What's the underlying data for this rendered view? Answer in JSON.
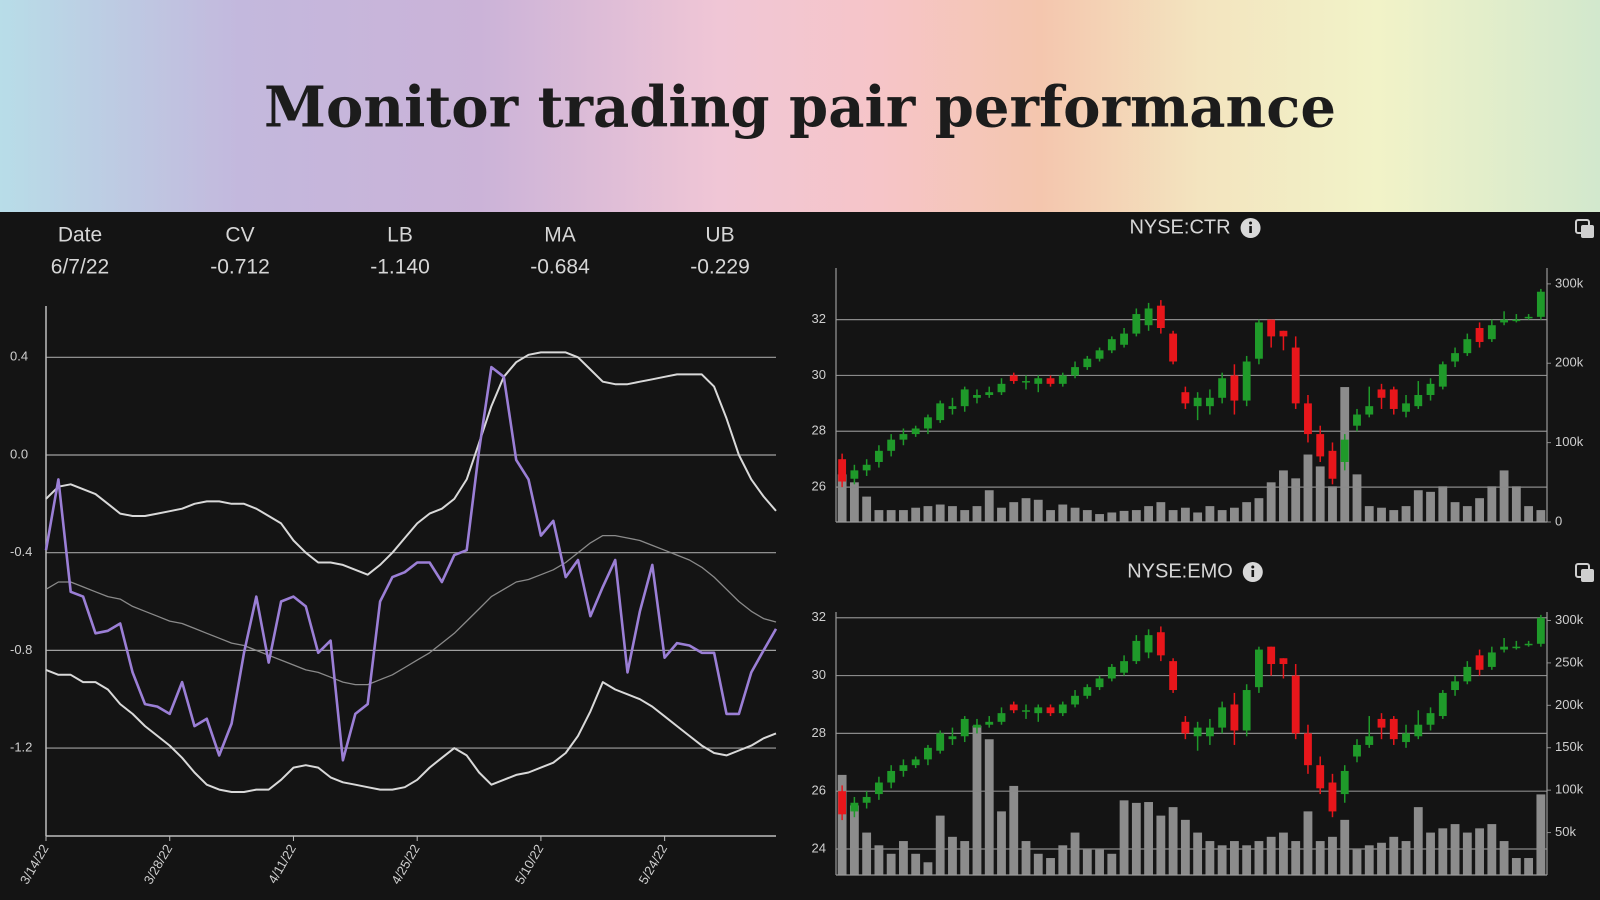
{
  "header": {
    "title": "Monitor trading pair performance"
  },
  "chart_data": [
    {
      "type": "line",
      "readout": {
        "label": "Date",
        "date": "6/7/22"
      },
      "categories": [
        "3/14/22",
        null,
        null,
        null,
        null,
        null,
        null,
        null,
        null,
        null,
        "3/28/22",
        null,
        null,
        null,
        null,
        null,
        null,
        null,
        null,
        null,
        "4/11/22",
        null,
        null,
        null,
        null,
        null,
        null,
        null,
        null,
        null,
        "4/25/22",
        null,
        null,
        null,
        null,
        null,
        null,
        null,
        null,
        null,
        "5/10/22",
        null,
        null,
        null,
        null,
        null,
        null,
        null,
        null,
        null,
        "5/24/22",
        null,
        null,
        null,
        null,
        null,
        null,
        null,
        null,
        null
      ],
      "ylim": [
        -1.56,
        0.61
      ],
      "yticks": [
        0.4,
        {
          "value": 0,
          "label": "0.0"
        },
        -0.4,
        -0.8,
        -1.2
      ],
      "grid": true,
      "series": [
        {
          "name": "CV",
          "readout": "-0.712",
          "color": "#9b7fd6",
          "width": 2.6,
          "values": [
            -0.39,
            -0.1,
            -0.56,
            -0.58,
            -0.73,
            -0.72,
            -0.69,
            -0.89,
            -1.02,
            -1.03,
            -1.06,
            -0.93,
            -1.11,
            -1.08,
            -1.23,
            -1.1,
            -0.81,
            -0.58,
            -0.85,
            -0.6,
            -0.58,
            -0.62,
            -0.81,
            -0.76,
            -1.25,
            -1.06,
            -1.02,
            -0.6,
            -0.5,
            -0.48,
            -0.44,
            -0.44,
            -0.52,
            -0.41,
            -0.39,
            0.02,
            0.36,
            0.32,
            -0.02,
            -0.1,
            -0.33,
            -0.27,
            -0.5,
            -0.43,
            -0.66,
            -0.54,
            -0.43,
            -0.89,
            -0.64,
            -0.45,
            -0.83,
            -0.77,
            -0.78,
            -0.81,
            -0.81,
            -1.06,
            -1.06,
            -0.89,
            -0.8,
            -0.712
          ]
        },
        {
          "name": "LB",
          "readout": "-1.140",
          "color": "#d9d9d9",
          "width": 2,
          "values": [
            -0.88,
            -0.9,
            -0.9,
            -0.93,
            -0.93,
            -0.96,
            -1.02,
            -1.06,
            -1.11,
            -1.15,
            -1.19,
            -1.24,
            -1.3,
            -1.35,
            -1.37,
            -1.38,
            -1.38,
            -1.37,
            -1.37,
            -1.33,
            -1.28,
            -1.27,
            -1.28,
            -1.32,
            -1.34,
            -1.35,
            -1.36,
            -1.37,
            -1.37,
            -1.36,
            -1.33,
            -1.28,
            -1.24,
            -1.2,
            -1.23,
            -1.3,
            -1.35,
            -1.33,
            -1.31,
            -1.3,
            -1.28,
            -1.26,
            -1.22,
            -1.15,
            -1.05,
            -0.93,
            -0.96,
            -0.98,
            -1.0,
            -1.03,
            -1.07,
            -1.11,
            -1.15,
            -1.19,
            -1.22,
            -1.23,
            -1.21,
            -1.19,
            -1.16,
            -1.14
          ]
        },
        {
          "name": "MA",
          "readout": "-0.684",
          "color": "#8a8a8a",
          "width": 1.3,
          "values": [
            -0.55,
            -0.52,
            -0.52,
            -0.54,
            -0.56,
            -0.58,
            -0.59,
            -0.62,
            -0.64,
            -0.66,
            -0.68,
            -0.69,
            -0.71,
            -0.73,
            -0.75,
            -0.77,
            -0.78,
            -0.8,
            -0.82,
            -0.84,
            -0.86,
            -0.88,
            -0.89,
            -0.91,
            -0.93,
            -0.94,
            -0.94,
            -0.92,
            -0.9,
            -0.87,
            -0.84,
            -0.81,
            -0.77,
            -0.73,
            -0.68,
            -0.63,
            -0.58,
            -0.55,
            -0.52,
            -0.51,
            -0.49,
            -0.47,
            -0.44,
            -0.4,
            -0.36,
            -0.33,
            -0.33,
            -0.34,
            -0.35,
            -0.37,
            -0.39,
            -0.41,
            -0.43,
            -0.46,
            -0.5,
            -0.55,
            -0.6,
            -0.64,
            -0.67,
            -0.684
          ]
        },
        {
          "name": "UB",
          "readout": "-0.229",
          "color": "#d9d9d9",
          "width": 2,
          "values": [
            -0.18,
            -0.13,
            -0.12,
            -0.14,
            -0.16,
            -0.2,
            -0.24,
            -0.25,
            -0.25,
            -0.24,
            -0.23,
            -0.22,
            -0.2,
            -0.19,
            -0.19,
            -0.2,
            -0.2,
            -0.22,
            -0.25,
            -0.28,
            -0.35,
            -0.4,
            -0.44,
            -0.44,
            -0.45,
            -0.47,
            -0.49,
            -0.45,
            -0.4,
            -0.34,
            -0.28,
            -0.24,
            -0.22,
            -0.18,
            -0.1,
            0.05,
            0.2,
            0.32,
            0.38,
            0.41,
            0.42,
            0.42,
            0.42,
            0.4,
            0.35,
            0.3,
            0.29,
            0.29,
            0.3,
            0.31,
            0.32,
            0.33,
            0.33,
            0.33,
            0.28,
            0.15,
            0.0,
            -0.1,
            -0.17,
            -0.229
          ]
        }
      ]
    },
    {
      "type": "candlestick",
      "title": "NYSE:CTR",
      "up_color": "#1f9a2a",
      "down_color": "#e8161b",
      "volume_color": "#8c8c8c",
      "grid": true,
      "ylim": [
        24.75,
        33.85
      ],
      "yticks": [
        26,
        28,
        30,
        32
      ],
      "y2lim": [
        0,
        320000
      ],
      "y2ticks": [
        0,
        {
          "value": 100000,
          "label": "100k"
        },
        {
          "value": 200000,
          "label": "200k"
        },
        {
          "value": 300000,
          "label": "300k"
        }
      ],
      "open": [
        27.0,
        26.3,
        26.6,
        26.9,
        27.3,
        27.7,
        27.9,
        28.1,
        28.4,
        28.8,
        28.9,
        29.2,
        29.3,
        29.4,
        30.0,
        29.8,
        29.7,
        29.9,
        29.7,
        30.0,
        30.3,
        30.6,
        30.9,
        31.1,
        31.5,
        31.8,
        32.5,
        31.5,
        29.4,
        28.9,
        28.9,
        29.2,
        30.0,
        29.1,
        30.6,
        32.0,
        31.6,
        31.0,
        29.0,
        27.9,
        27.3,
        26.9,
        28.2,
        28.6,
        29.5,
        29.5,
        28.7,
        28.9,
        29.3,
        29.6,
        30.5,
        30.8,
        31.7,
        31.3,
        31.9,
        32.0,
        32.1,
        32.1
      ],
      "high": [
        27.2,
        26.8,
        27.0,
        27.5,
        27.9,
        28.1,
        28.2,
        28.6,
        29.1,
        29.2,
        29.6,
        29.5,
        29.6,
        29.9,
        30.1,
        30.0,
        30.0,
        30.0,
        30.1,
        30.5,
        30.7,
        31.0,
        31.4,
        31.7,
        32.4,
        32.6,
        32.7,
        31.6,
        29.6,
        29.4,
        29.5,
        30.1,
        30.4,
        30.7,
        32.0,
        32.0,
        31.6,
        31.4,
        29.3,
        28.2,
        27.6,
        27.9,
        28.8,
        29.6,
        29.7,
        29.6,
        29.3,
        29.8,
        29.9,
        30.5,
        31.0,
        31.5,
        31.9,
        32.0,
        32.3,
        32.2,
        32.2,
        33.1
      ],
      "low": [
        26.0,
        26.1,
        26.4,
        26.7,
        27.1,
        27.5,
        27.8,
        27.9,
        28.3,
        28.6,
        28.7,
        29.0,
        29.2,
        29.3,
        29.7,
        29.5,
        29.4,
        29.6,
        29.6,
        29.9,
        30.2,
        30.5,
        30.8,
        31.0,
        31.4,
        31.6,
        31.5,
        30.4,
        28.8,
        28.4,
        28.6,
        29.0,
        28.6,
        28.9,
        30.4,
        31.0,
        30.9,
        28.8,
        27.6,
        26.9,
        26.1,
        26.6,
        28.0,
        28.5,
        28.8,
        28.6,
        28.5,
        28.8,
        29.1,
        29.5,
        30.3,
        30.7,
        31.0,
        31.2,
        31.8,
        31.9,
        32.0,
        32.0
      ],
      "close": [
        26.2,
        26.6,
        26.8,
        27.3,
        27.7,
        27.9,
        28.1,
        28.5,
        29.0,
        28.9,
        29.5,
        29.3,
        29.4,
        29.7,
        29.8,
        29.8,
        29.9,
        29.7,
        30.0,
        30.3,
        30.6,
        30.9,
        31.3,
        31.5,
        32.2,
        32.4,
        31.7,
        30.5,
        29.0,
        29.2,
        29.2,
        29.9,
        29.1,
        30.5,
        31.9,
        31.4,
        31.4,
        29.0,
        27.9,
        27.1,
        26.3,
        27.7,
        28.6,
        28.9,
        29.2,
        28.8,
        29.0,
        29.3,
        29.7,
        30.4,
        30.8,
        31.3,
        31.2,
        31.8,
        32.0,
        32.0,
        32.1,
        33.0
      ],
      "volume": [
        60000,
        50000,
        32000,
        15000,
        15000,
        15000,
        18000,
        20000,
        22000,
        20000,
        15000,
        20000,
        40000,
        18000,
        25000,
        30000,
        28000,
        15000,
        22000,
        18000,
        15000,
        10000,
        12000,
        14000,
        15000,
        20000,
        25000,
        15000,
        18000,
        12000,
        20000,
        15000,
        18000,
        25000,
        30000,
        50000,
        65000,
        55000,
        85000,
        70000,
        45000,
        170000,
        60000,
        20000,
        18000,
        15000,
        20000,
        40000,
        38000,
        45000,
        25000,
        20000,
        30000,
        45000,
        65000,
        45000,
        20000,
        15000
      ]
    },
    {
      "type": "candlestick",
      "title": "NYSE:EMO",
      "up_color": "#1f9a2a",
      "down_color": "#e8161b",
      "volume_color": "#8c8c8c",
      "grid": true,
      "ylim": [
        23.1,
        32.2
      ],
      "yticks": [
        24,
        26,
        28,
        30,
        32
      ],
      "y2lim": [
        0,
        310000
      ],
      "y2ticks": [
        {
          "value": 50000,
          "label": "50k"
        },
        {
          "value": 100000,
          "label": "100k"
        },
        {
          "value": 150000,
          "label": "150k"
        },
        {
          "value": 200000,
          "label": "200k"
        },
        {
          "value": 250000,
          "label": "250k"
        },
        {
          "value": 300000,
          "label": "300k"
        }
      ],
      "open": [
        26.0,
        25.3,
        25.6,
        25.9,
        26.3,
        26.7,
        26.9,
        27.1,
        27.4,
        27.8,
        27.9,
        28.2,
        28.3,
        28.4,
        29.0,
        28.8,
        28.7,
        28.9,
        28.7,
        29.0,
        29.3,
        29.6,
        29.9,
        30.1,
        30.5,
        30.8,
        31.5,
        30.5,
        28.4,
        27.9,
        27.9,
        28.2,
        29.0,
        28.1,
        29.6,
        31.0,
        30.6,
        30.0,
        28.0,
        26.9,
        26.3,
        25.9,
        27.2,
        27.6,
        28.5,
        28.5,
        27.7,
        27.9,
        28.3,
        28.6,
        29.5,
        29.8,
        30.7,
        30.3,
        30.9,
        31.0,
        31.1,
        31.1
      ],
      "high": [
        26.2,
        25.8,
        26.0,
        26.5,
        26.9,
        27.1,
        27.2,
        27.6,
        28.1,
        28.2,
        28.6,
        28.5,
        28.6,
        28.9,
        29.1,
        29.0,
        29.0,
        29.0,
        29.1,
        29.5,
        29.7,
        30.0,
        30.4,
        30.7,
        31.4,
        31.6,
        31.7,
        30.6,
        28.6,
        28.4,
        28.5,
        29.1,
        29.4,
        29.7,
        31.0,
        31.0,
        30.6,
        30.4,
        28.3,
        27.2,
        26.6,
        26.9,
        27.8,
        28.6,
        28.7,
        28.6,
        28.3,
        28.8,
        28.9,
        29.5,
        30.0,
        30.5,
        30.9,
        31.0,
        31.3,
        31.2,
        31.2,
        32.1
      ],
      "low": [
        25.0,
        25.1,
        25.4,
        25.7,
        26.1,
        26.5,
        26.8,
        26.9,
        27.3,
        27.6,
        27.7,
        28.0,
        28.2,
        28.3,
        28.7,
        28.5,
        28.4,
        28.6,
        28.6,
        28.9,
        29.2,
        29.5,
        29.8,
        30.0,
        30.4,
        30.6,
        30.5,
        29.4,
        27.8,
        27.4,
        27.6,
        28.0,
        27.6,
        27.9,
        29.4,
        30.0,
        29.9,
        27.8,
        26.6,
        25.9,
        25.1,
        25.6,
        27.0,
        27.5,
        27.8,
        27.6,
        27.5,
        27.8,
        28.1,
        28.5,
        29.3,
        29.7,
        30.0,
        30.2,
        30.8,
        30.9,
        31.0,
        31.0
      ],
      "close": [
        25.2,
        25.6,
        25.8,
        26.3,
        26.7,
        26.9,
        27.1,
        27.5,
        28.0,
        27.9,
        28.5,
        28.3,
        28.4,
        28.7,
        28.8,
        28.8,
        28.9,
        28.7,
        29.0,
        29.3,
        29.6,
        29.9,
        30.3,
        30.5,
        31.2,
        31.4,
        30.7,
        29.5,
        28.0,
        28.2,
        28.2,
        28.9,
        28.1,
        29.5,
        30.9,
        30.4,
        30.4,
        28.0,
        26.9,
        26.1,
        25.3,
        26.7,
        27.6,
        27.9,
        28.2,
        27.8,
        28.0,
        28.3,
        28.7,
        29.4,
        29.8,
        30.3,
        30.2,
        30.8,
        31.0,
        31.0,
        31.1,
        32.0
      ],
      "volume": [
        118000,
        82000,
        50000,
        35000,
        25000,
        40000,
        25000,
        15000,
        70000,
        45000,
        40000,
        176000,
        160000,
        75000,
        105000,
        40000,
        25000,
        20000,
        35000,
        50000,
        30000,
        30000,
        25000,
        88000,
        85000,
        86000,
        70000,
        80000,
        65000,
        50000,
        40000,
        35000,
        40000,
        35000,
        40000,
        45000,
        50000,
        40000,
        75000,
        40000,
        45000,
        65000,
        30000,
        35000,
        38000,
        45000,
        40000,
        80000,
        50000,
        55000,
        60000,
        50000,
        55000,
        60000,
        40000,
        20000,
        20000,
        95000
      ]
    }
  ]
}
